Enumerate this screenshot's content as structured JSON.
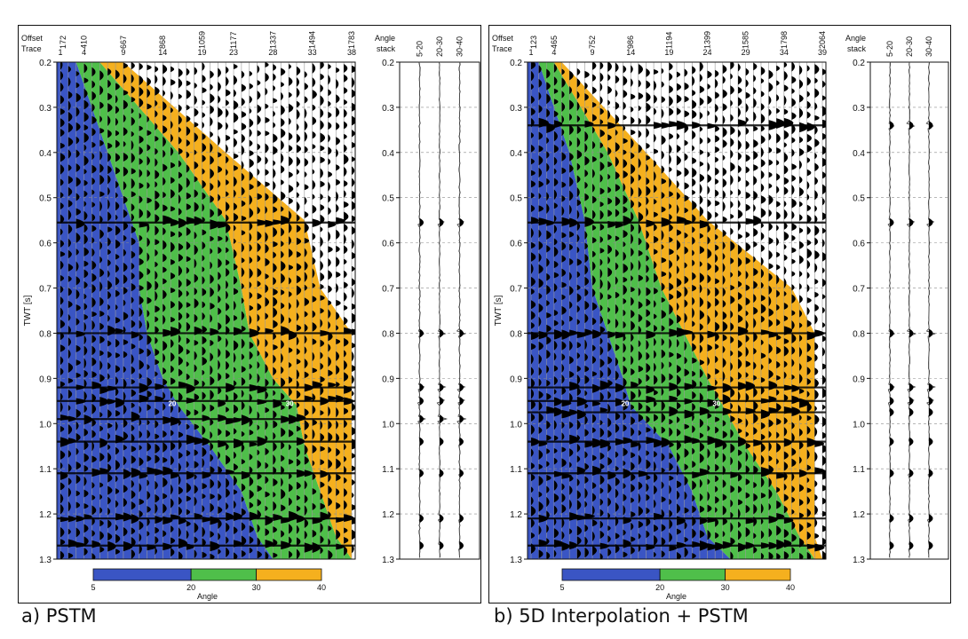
{
  "figure": {
    "caption_a": "a) PSTM",
    "caption_b": "b) 5D Interpolation + PSTM"
  },
  "labels": {
    "offset": "Offset",
    "trace": "Trace",
    "y_axis": "TWT [s]",
    "angle_stack_line1": "Angle",
    "angle_stack_line2": "stack",
    "colorbar_title": "Angle"
  },
  "colors": {
    "blue": "#3a55c4",
    "green": "#4fbf4a",
    "orange": "#f5b01e",
    "wiggle": "#000000",
    "grid": "#8a8a8a"
  },
  "chart_data": [
    {
      "type": "heatmap",
      "title": "a) PSTM",
      "ylabel": "TWT [s]",
      "ylim": [
        0.2,
        1.3
      ],
      "yticks": [
        "0.2",
        "0.3",
        "0.4",
        "0.5",
        "0.6",
        "0.7",
        "0.8",
        "0.9",
        "1.0",
        "1.1",
        "1.2",
        "1.3"
      ],
      "offset_ticks": [
        "172",
        "410",
        "667",
        "868",
        "1059",
        "1177",
        "1337",
        "1494",
        "1783"
      ],
      "trace_ticks": [
        "1",
        "4",
        "9",
        "14",
        "19",
        "23",
        "28",
        "33",
        "38"
      ],
      "trace_range": [
        1,
        38
      ],
      "angle_zones": [
        {
          "name": "5-20",
          "color": "#3a55c4"
        },
        {
          "name": "20-30",
          "color": "#4fbf4a"
        },
        {
          "name": "30-40",
          "color": "#f5b01e"
        }
      ],
      "zone_labels": [
        "20",
        "30"
      ],
      "boundary_20": {
        "twt": [
          0.2,
          0.55,
          0.6,
          0.7,
          0.8,
          0.9,
          0.96,
          1.05,
          1.15,
          1.25,
          1.3
        ],
        "trace": [
          3,
          10,
          11,
          11,
          12,
          14,
          16,
          20,
          24,
          26,
          28
        ]
      },
      "boundary_30": {
        "twt": [
          0.2,
          0.4,
          0.55,
          0.7,
          0.8,
          0.9,
          0.96,
          1.05,
          1.15,
          1.25,
          1.3
        ],
        "trace": [
          6,
          16,
          22,
          24,
          25,
          28,
          31,
          32,
          34,
          36,
          38
        ]
      },
      "boundary_40": {
        "twt": [
          0.2,
          0.4,
          0.55,
          0.7,
          0.8,
          0.9,
          0.96,
          1.05,
          1.15,
          1.25,
          1.3
        ],
        "trace": [
          9,
          22,
          32,
          34,
          38,
          38,
          38,
          38,
          38,
          38,
          38
        ]
      },
      "angle_stack": {
        "columns": [
          "5-20",
          "20-30",
          "30-40"
        ],
        "events_twt": [
          0.555,
          0.8,
          0.92,
          0.95,
          0.99,
          1.04,
          1.11,
          1.21,
          1.27
        ]
      },
      "colorbar": {
        "title": "Angle",
        "ticks": [
          "5",
          "20",
          "30",
          "40"
        ]
      }
    },
    {
      "type": "heatmap",
      "title": "b) 5D Interpolation + PSTM",
      "ylabel": "TWT [s]",
      "ylim": [
        0.2,
        1.3
      ],
      "yticks": [
        "0.2",
        "0.3",
        "0.4",
        "0.5",
        "0.6",
        "0.7",
        "0.8",
        "0.9",
        "1.0",
        "1.1",
        "1.2",
        "1.3"
      ],
      "offset_ticks": [
        "123",
        "465",
        "752",
        "986",
        "1194",
        "1399",
        "1585",
        "1798",
        "2064"
      ],
      "trace_ticks": [
        "1",
        "4",
        "9",
        "14",
        "19",
        "24",
        "29",
        "34",
        "39"
      ],
      "trace_range": [
        1,
        39
      ],
      "angle_zones": [
        {
          "name": "5-20",
          "color": "#3a55c4"
        },
        {
          "name": "20-30",
          "color": "#4fbf4a"
        },
        {
          "name": "30-40",
          "color": "#f5b01e"
        }
      ],
      "zone_labels": [
        "20",
        "30"
      ],
      "boundary_20": {
        "twt": [
          0.2,
          0.4,
          0.55,
          0.7,
          0.8,
          0.9,
          0.96,
          1.05,
          1.15,
          1.25,
          1.3
        ],
        "trace": [
          2,
          6,
          8,
          9,
          11,
          13,
          14,
          19,
          22,
          24,
          27
        ]
      },
      "boundary_30": {
        "twt": [
          0.2,
          0.4,
          0.55,
          0.7,
          0.8,
          0.9,
          0.96,
          1.05,
          1.15,
          1.25,
          1.3
        ],
        "trace": [
          4,
          11,
          15,
          18,
          21,
          24,
          26,
          29,
          33,
          36,
          38
        ]
      },
      "boundary_40": {
        "twt": [
          0.2,
          0.4,
          0.55,
          0.7,
          0.8,
          0.9,
          0.96,
          1.05,
          1.15,
          1.25,
          1.3
        ],
        "trace": [
          5,
          16,
          24,
          35,
          38,
          38,
          38,
          38,
          38,
          38,
          39
        ]
      },
      "angle_stack": {
        "columns": [
          "5-20",
          "20-30",
          "30-40"
        ],
        "events_twt": [
          0.34,
          0.555,
          0.8,
          0.92,
          0.95,
          0.975,
          1.04,
          1.11,
          1.21,
          1.27
        ]
      },
      "colorbar": {
        "title": "Angle",
        "ticks": [
          "5",
          "20",
          "30",
          "40"
        ]
      }
    }
  ]
}
